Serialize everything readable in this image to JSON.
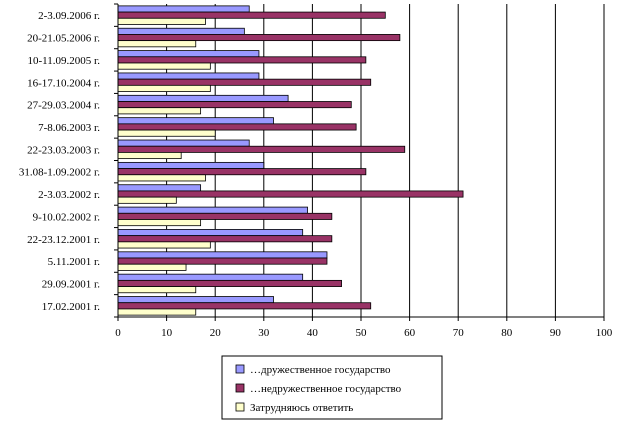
{
  "chart_data": {
    "type": "bar",
    "orientation": "horizontal",
    "categories": [
      "2-3.09.2006 г.",
      "20-21.05.2006 г.",
      "10-11.09.2005 г.",
      "16-17.10.2004 г.",
      "27-29.03.2004 г.",
      "7-8.06.2003 г.",
      "22-23.03.2003 г.",
      "31.08-1.09.2002 г.",
      "2-3.03.2002 г.",
      "9-10.02.2002 г.",
      "22-23.12.2001 г.",
      "5.11.2001 г.",
      "29.09.2001 г.",
      "17.02.2001 г."
    ],
    "series": [
      {
        "name": "…дружественное государство",
        "color": "#9999ff",
        "values": [
          27,
          26,
          29,
          29,
          35,
          32,
          27,
          30,
          17,
          39,
          38,
          43,
          38,
          32
        ]
      },
      {
        "name": "…недружественное государство",
        "color": "#993366",
        "values": [
          55,
          58,
          51,
          52,
          48,
          49,
          59,
          51,
          71,
          44,
          44,
          43,
          46,
          52
        ]
      },
      {
        "name": "Затрудняюсь ответить",
        "color": "#ffffcc",
        "values": [
          18,
          16,
          19,
          19,
          17,
          20,
          13,
          18,
          12,
          17,
          19,
          14,
          16,
          16
        ]
      }
    ],
    "xlim": [
      0,
      100
    ],
    "xticks": [
      0,
      10,
      20,
      30,
      40,
      50,
      60,
      70,
      80,
      90,
      100
    ],
    "grid": "vertical",
    "legend_position": "bottom",
    "title": "",
    "xlabel": "",
    "ylabel": ""
  }
}
